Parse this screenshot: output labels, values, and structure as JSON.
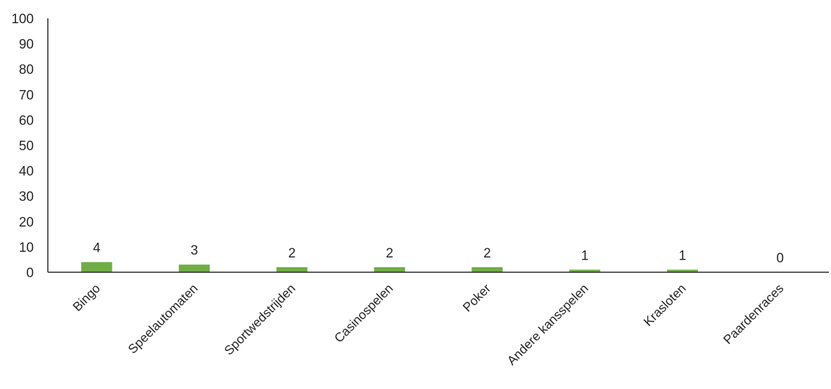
{
  "chart_data": {
    "type": "bar",
    "title": "",
    "xlabel": "",
    "ylabel": "",
    "categories": [
      "Bingo",
      "Speelautomaten",
      "Sportwedstrijden",
      "Casinospelen",
      "Poker",
      "Andere kansspelen",
      "Krasloten",
      "Paardenraces"
    ],
    "values": [
      4,
      3,
      2,
      2,
      2,
      1,
      1,
      0
    ],
    "data_labels": [
      "4",
      "3",
      "2",
      "2",
      "2",
      "1",
      "1",
      "0"
    ],
    "ylim": [
      0,
      100
    ],
    "yticks": [
      0,
      10,
      20,
      30,
      40,
      50,
      60,
      70,
      80,
      90,
      100
    ],
    "ytick_labels": [
      "0",
      "10",
      "20",
      "30",
      "40",
      "50",
      "60",
      "70",
      "80",
      "90",
      "100"
    ],
    "grid": false,
    "legend": "none",
    "bar_color": "#70AD47"
  }
}
